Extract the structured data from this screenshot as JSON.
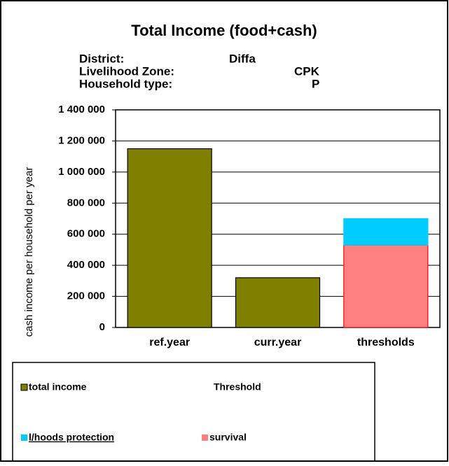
{
  "chart_data": {
    "type": "stacked_bar",
    "title": "Total Income (food+cash)",
    "info": [
      {
        "label": "District:",
        "value": "Diffa"
      },
      {
        "label": "Livelihood Zone:",
        "value": "CPK"
      },
      {
        "label": "Household type:",
        "value": "P"
      }
    ],
    "y_label": "cash income per household per year",
    "categories": [
      "ref.year",
      "curr.year",
      "thresholds"
    ],
    "series": [
      {
        "name": "total income",
        "color": "#808000",
        "values": [
          1150000,
          320000,
          null
        ]
      },
      {
        "name": "l/hoods protection",
        "color": "#00ccff",
        "values": [
          null,
          null,
          170000
        ]
      },
      {
        "name": "survival",
        "color": "#ff8080",
        "values": [
          null,
          null,
          530000
        ]
      }
    ],
    "legend_heading": "Threshold",
    "ylim": [
      0,
      1400000
    ],
    "yticks": [
      0,
      {
        "value": 200000,
        "label": "200 000"
      },
      {
        "value": 400000,
        "label": "400 000"
      },
      {
        "value": 600000,
        "label": "600 000"
      },
      {
        "value": 800000,
        "label": "800 000"
      },
      {
        "value": 1000000,
        "label": "1 000 000"
      },
      {
        "value": 1200000,
        "label": "1 200 000"
      },
      {
        "value": 1400000,
        "label": "1 400 000"
      }
    ],
    "grid": true
  }
}
